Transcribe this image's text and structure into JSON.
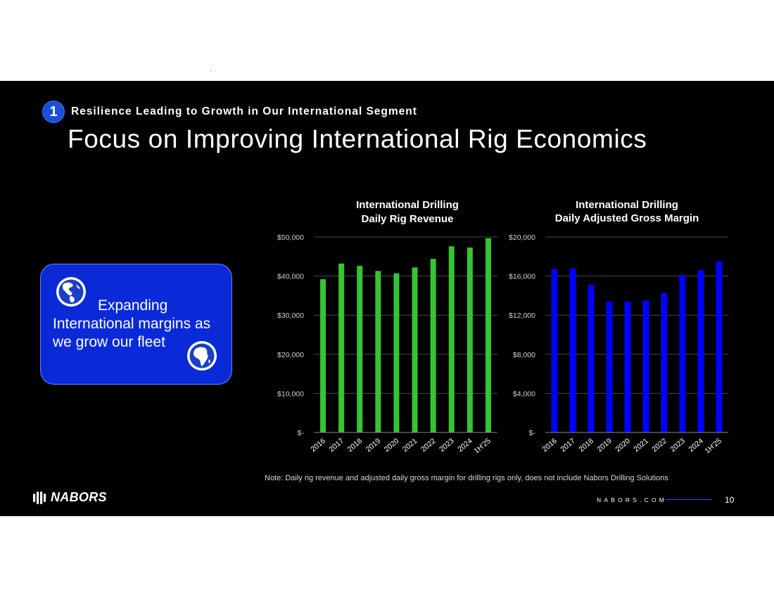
{
  "header": {
    "section_number": "1",
    "section_title": "Resilience Leading to Growth in Our International Segment",
    "page_title": "Focus on Improving International Rig Economics"
  },
  "callout": {
    "line1": "Expanding",
    "line2": "International margins as we grow our fleet",
    "icons": [
      "globe-americas-icon",
      "globe-africa-icon"
    ]
  },
  "colors": {
    "background": "#000000",
    "revenue_bar": "#38c432",
    "margin_bar": "#0000ff",
    "callout_fill": "#0a2ad8",
    "accent": "#1a4fd6"
  },
  "chart_data": [
    {
      "type": "bar",
      "title": "International Drilling\nDaily Rig Revenue",
      "title_lines": [
        "International Drilling",
        "Daily Rig Revenue"
      ],
      "categories": [
        "2016",
        "2017",
        "2018",
        "2019",
        "2020",
        "2021",
        "2022",
        "2023",
        "2024",
        "1H'25"
      ],
      "values": [
        39200,
        43200,
        42600,
        41300,
        40700,
        42200,
        44400,
        47600,
        47300,
        49700
      ],
      "ylim": [
        0,
        50000
      ],
      "ticks": [
        0,
        10000,
        20000,
        30000,
        40000,
        50000
      ],
      "tick_labels": [
        "$-",
        "$10,000",
        "$20,000",
        "$30,000",
        "$40,000",
        "$50,000"
      ],
      "xlabel": "",
      "ylabel": "",
      "grid": true
    },
    {
      "type": "bar",
      "title": "International Drilling\nDaily Adjusted Gross Margin",
      "title_lines": [
        "International Drilling",
        "Daily Adjusted Gross Margin"
      ],
      "categories": [
        "2016",
        "2017",
        "2018",
        "2019",
        "2020",
        "2021",
        "2022",
        "2023",
        "2024",
        "1H'25"
      ],
      "values": [
        16700,
        16800,
        15100,
        13400,
        13400,
        13500,
        14300,
        16100,
        16600,
        17500
      ],
      "ylim": [
        0,
        20000
      ],
      "ticks": [
        0,
        4000,
        8000,
        12000,
        16000,
        20000
      ],
      "tick_labels": [
        "$-",
        "$4,000",
        "$8,000",
        "$12,000",
        "$16,000",
        "$20,000"
      ],
      "xlabel": "",
      "ylabel": "",
      "grid": true
    }
  ],
  "footer": {
    "note": "Note: Daily rig revenue and adjusted daily gross margin for drilling rigs only, does not include Nabors Drilling Solutions",
    "logo_text": "NABORS",
    "website": "NABORS.COM",
    "page_number": "10"
  }
}
